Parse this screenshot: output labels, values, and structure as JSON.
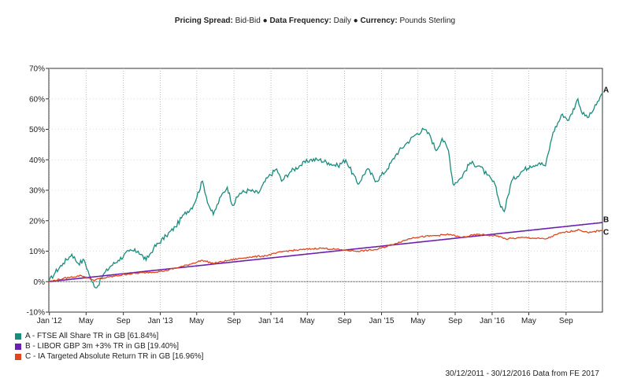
{
  "header": {
    "pricing_label": "Pricing Spread:",
    "pricing_value": "Bid-Bid",
    "freq_label": "Data Frequency:",
    "freq_value": "Daily",
    "currency_label": "Currency:",
    "currency_value": "Pounds Sterling",
    "separator": "●"
  },
  "footer": {
    "text": "30/12/2011 - 30/12/2016 Data from FE 2017"
  },
  "chart_data": {
    "type": "line",
    "title": "",
    "xlabel": "",
    "ylabel": "",
    "x_range": [
      "2011-12-30",
      "2016-12-30"
    ],
    "ylim": [
      -10,
      70
    ],
    "y_ticks": [
      -10,
      0,
      10,
      20,
      30,
      40,
      50,
      60,
      70
    ],
    "y_tick_labels": [
      "-10%",
      "0%",
      "10%",
      "20%",
      "30%",
      "40%",
      "50%",
      "60%",
      "70%"
    ],
    "x_ticks": [
      {
        "date": "2012-01-01",
        "label": "Jan '12"
      },
      {
        "date": "2012-05-01",
        "label": "May"
      },
      {
        "date": "2012-09-01",
        "label": "Sep"
      },
      {
        "date": "2013-01-01",
        "label": "Jan '13"
      },
      {
        "date": "2013-05-01",
        "label": "May"
      },
      {
        "date": "2013-09-01",
        "label": "Sep"
      },
      {
        "date": "2014-01-01",
        "label": "Jan '14"
      },
      {
        "date": "2014-05-01",
        "label": "May"
      },
      {
        "date": "2014-09-01",
        "label": "Sep"
      },
      {
        "date": "2015-01-01",
        "label": "Jan '15"
      },
      {
        "date": "2015-05-01",
        "label": "May"
      },
      {
        "date": "2015-09-01",
        "label": "Sep"
      },
      {
        "date": "2016-01-01",
        "label": "Jan '16"
      },
      {
        "date": "2016-05-01",
        "label": "May"
      },
      {
        "date": "2016-09-01",
        "label": "Sep"
      }
    ],
    "grid": "vertical dotted and horizontal dotted",
    "legend_position": "bottom-left",
    "series": [
      {
        "key": "A",
        "name": "A - FTSE All Share TR in GB [61.84%]",
        "color": "#1a8c7e",
        "points": [
          [
            "2011-12-30",
            0
          ],
          [
            "2012-01-20",
            3
          ],
          [
            "2012-02-15",
            6
          ],
          [
            "2012-03-15",
            9
          ],
          [
            "2012-04-05",
            6
          ],
          [
            "2012-04-25",
            7
          ],
          [
            "2012-05-20",
            0
          ],
          [
            "2012-06-05",
            -2
          ],
          [
            "2012-06-25",
            2
          ],
          [
            "2012-07-20",
            5
          ],
          [
            "2012-08-15",
            7
          ],
          [
            "2012-09-20",
            10
          ],
          [
            "2012-10-20",
            10
          ],
          [
            "2012-11-15",
            7
          ],
          [
            "2012-12-10",
            11
          ],
          [
            "2013-01-20",
            15
          ],
          [
            "2013-02-20",
            18
          ],
          [
            "2013-03-20",
            22
          ],
          [
            "2013-04-20",
            25
          ],
          [
            "2013-05-20",
            33
          ],
          [
            "2013-06-10",
            25
          ],
          [
            "2013-06-25",
            22
          ],
          [
            "2013-07-20",
            28
          ],
          [
            "2013-08-10",
            31
          ],
          [
            "2013-08-28",
            25
          ],
          [
            "2013-09-20",
            29
          ],
          [
            "2013-10-20",
            30
          ],
          [
            "2013-11-20",
            29
          ],
          [
            "2013-12-20",
            34
          ],
          [
            "2014-01-20",
            37
          ],
          [
            "2014-02-05",
            33
          ],
          [
            "2014-03-05",
            36
          ],
          [
            "2014-04-05",
            38
          ],
          [
            "2014-05-10",
            40
          ],
          [
            "2014-06-10",
            40
          ],
          [
            "2014-07-10",
            39
          ],
          [
            "2014-08-10",
            38
          ],
          [
            "2014-09-05",
            40
          ],
          [
            "2014-10-15",
            32
          ],
          [
            "2014-11-15",
            37
          ],
          [
            "2014-12-15",
            33
          ],
          [
            "2015-01-20",
            37
          ],
          [
            "2015-02-20",
            42
          ],
          [
            "2015-03-20",
            45
          ],
          [
            "2015-04-20",
            48
          ],
          [
            "2015-05-20",
            50
          ],
          [
            "2015-06-10",
            48
          ],
          [
            "2015-06-30",
            43
          ],
          [
            "2015-07-20",
            47
          ],
          [
            "2015-08-10",
            43
          ],
          [
            "2015-08-25",
            32
          ],
          [
            "2015-09-20",
            34
          ],
          [
            "2015-10-20",
            39
          ],
          [
            "2015-11-20",
            38
          ],
          [
            "2015-12-15",
            35
          ],
          [
            "2016-01-10",
            32
          ],
          [
            "2016-01-25",
            26
          ],
          [
            "2016-02-10",
            23
          ],
          [
            "2016-03-05",
            33
          ],
          [
            "2016-04-05",
            36
          ],
          [
            "2016-05-05",
            38
          ],
          [
            "2016-06-05",
            39
          ],
          [
            "2016-06-25",
            38
          ],
          [
            "2016-07-20",
            49
          ],
          [
            "2016-08-20",
            55
          ],
          [
            "2016-09-10",
            53
          ],
          [
            "2016-10-10",
            60
          ],
          [
            "2016-10-25",
            55
          ],
          [
            "2016-11-15",
            54
          ],
          [
            "2016-12-10",
            58
          ],
          [
            "2016-12-30",
            61.84
          ]
        ],
        "end_label": "A"
      },
      {
        "key": "B",
        "name": "B - LIBOR GBP 3m +3% TR in GB [19.40%]",
        "color": "#6a1fb0",
        "points": [
          [
            "2011-12-30",
            0
          ],
          [
            "2016-12-30",
            19.4
          ]
        ],
        "end_label": "B"
      },
      {
        "key": "C",
        "name": "C - IA Targeted Absolute Return TR in GB [16.96%]",
        "color": "#e0461e",
        "points": [
          [
            "2011-12-30",
            0
          ],
          [
            "2012-02-15",
            1
          ],
          [
            "2012-04-15",
            2
          ],
          [
            "2012-05-25",
            0.5
          ],
          [
            "2012-07-15",
            1.5
          ],
          [
            "2012-09-15",
            2.5
          ],
          [
            "2012-11-15",
            3
          ],
          [
            "2013-01-15",
            3.5
          ],
          [
            "2013-03-15",
            5
          ],
          [
            "2013-05-20",
            7
          ],
          [
            "2013-06-25",
            6
          ],
          [
            "2013-08-15",
            7
          ],
          [
            "2013-10-15",
            8
          ],
          [
            "2013-12-15",
            8.5
          ],
          [
            "2014-02-15",
            10
          ],
          [
            "2014-04-15",
            10.5
          ],
          [
            "2014-06-15",
            11
          ],
          [
            "2014-08-15",
            10.5
          ],
          [
            "2014-10-15",
            10
          ],
          [
            "2014-12-15",
            10.5
          ],
          [
            "2015-02-15",
            12.5
          ],
          [
            "2015-04-15",
            14.5
          ],
          [
            "2015-06-15",
            15
          ],
          [
            "2015-08-15",
            15.5
          ],
          [
            "2015-09-20",
            14.5
          ],
          [
            "2015-11-15",
            15.5
          ],
          [
            "2016-01-20",
            15
          ],
          [
            "2016-02-15",
            14
          ],
          [
            "2016-04-15",
            14.5
          ],
          [
            "2016-06-25",
            14
          ],
          [
            "2016-08-15",
            16
          ],
          [
            "2016-10-15",
            17
          ],
          [
            "2016-11-15",
            16
          ],
          [
            "2016-12-30",
            16.96
          ]
        ],
        "end_label": "C"
      }
    ]
  }
}
